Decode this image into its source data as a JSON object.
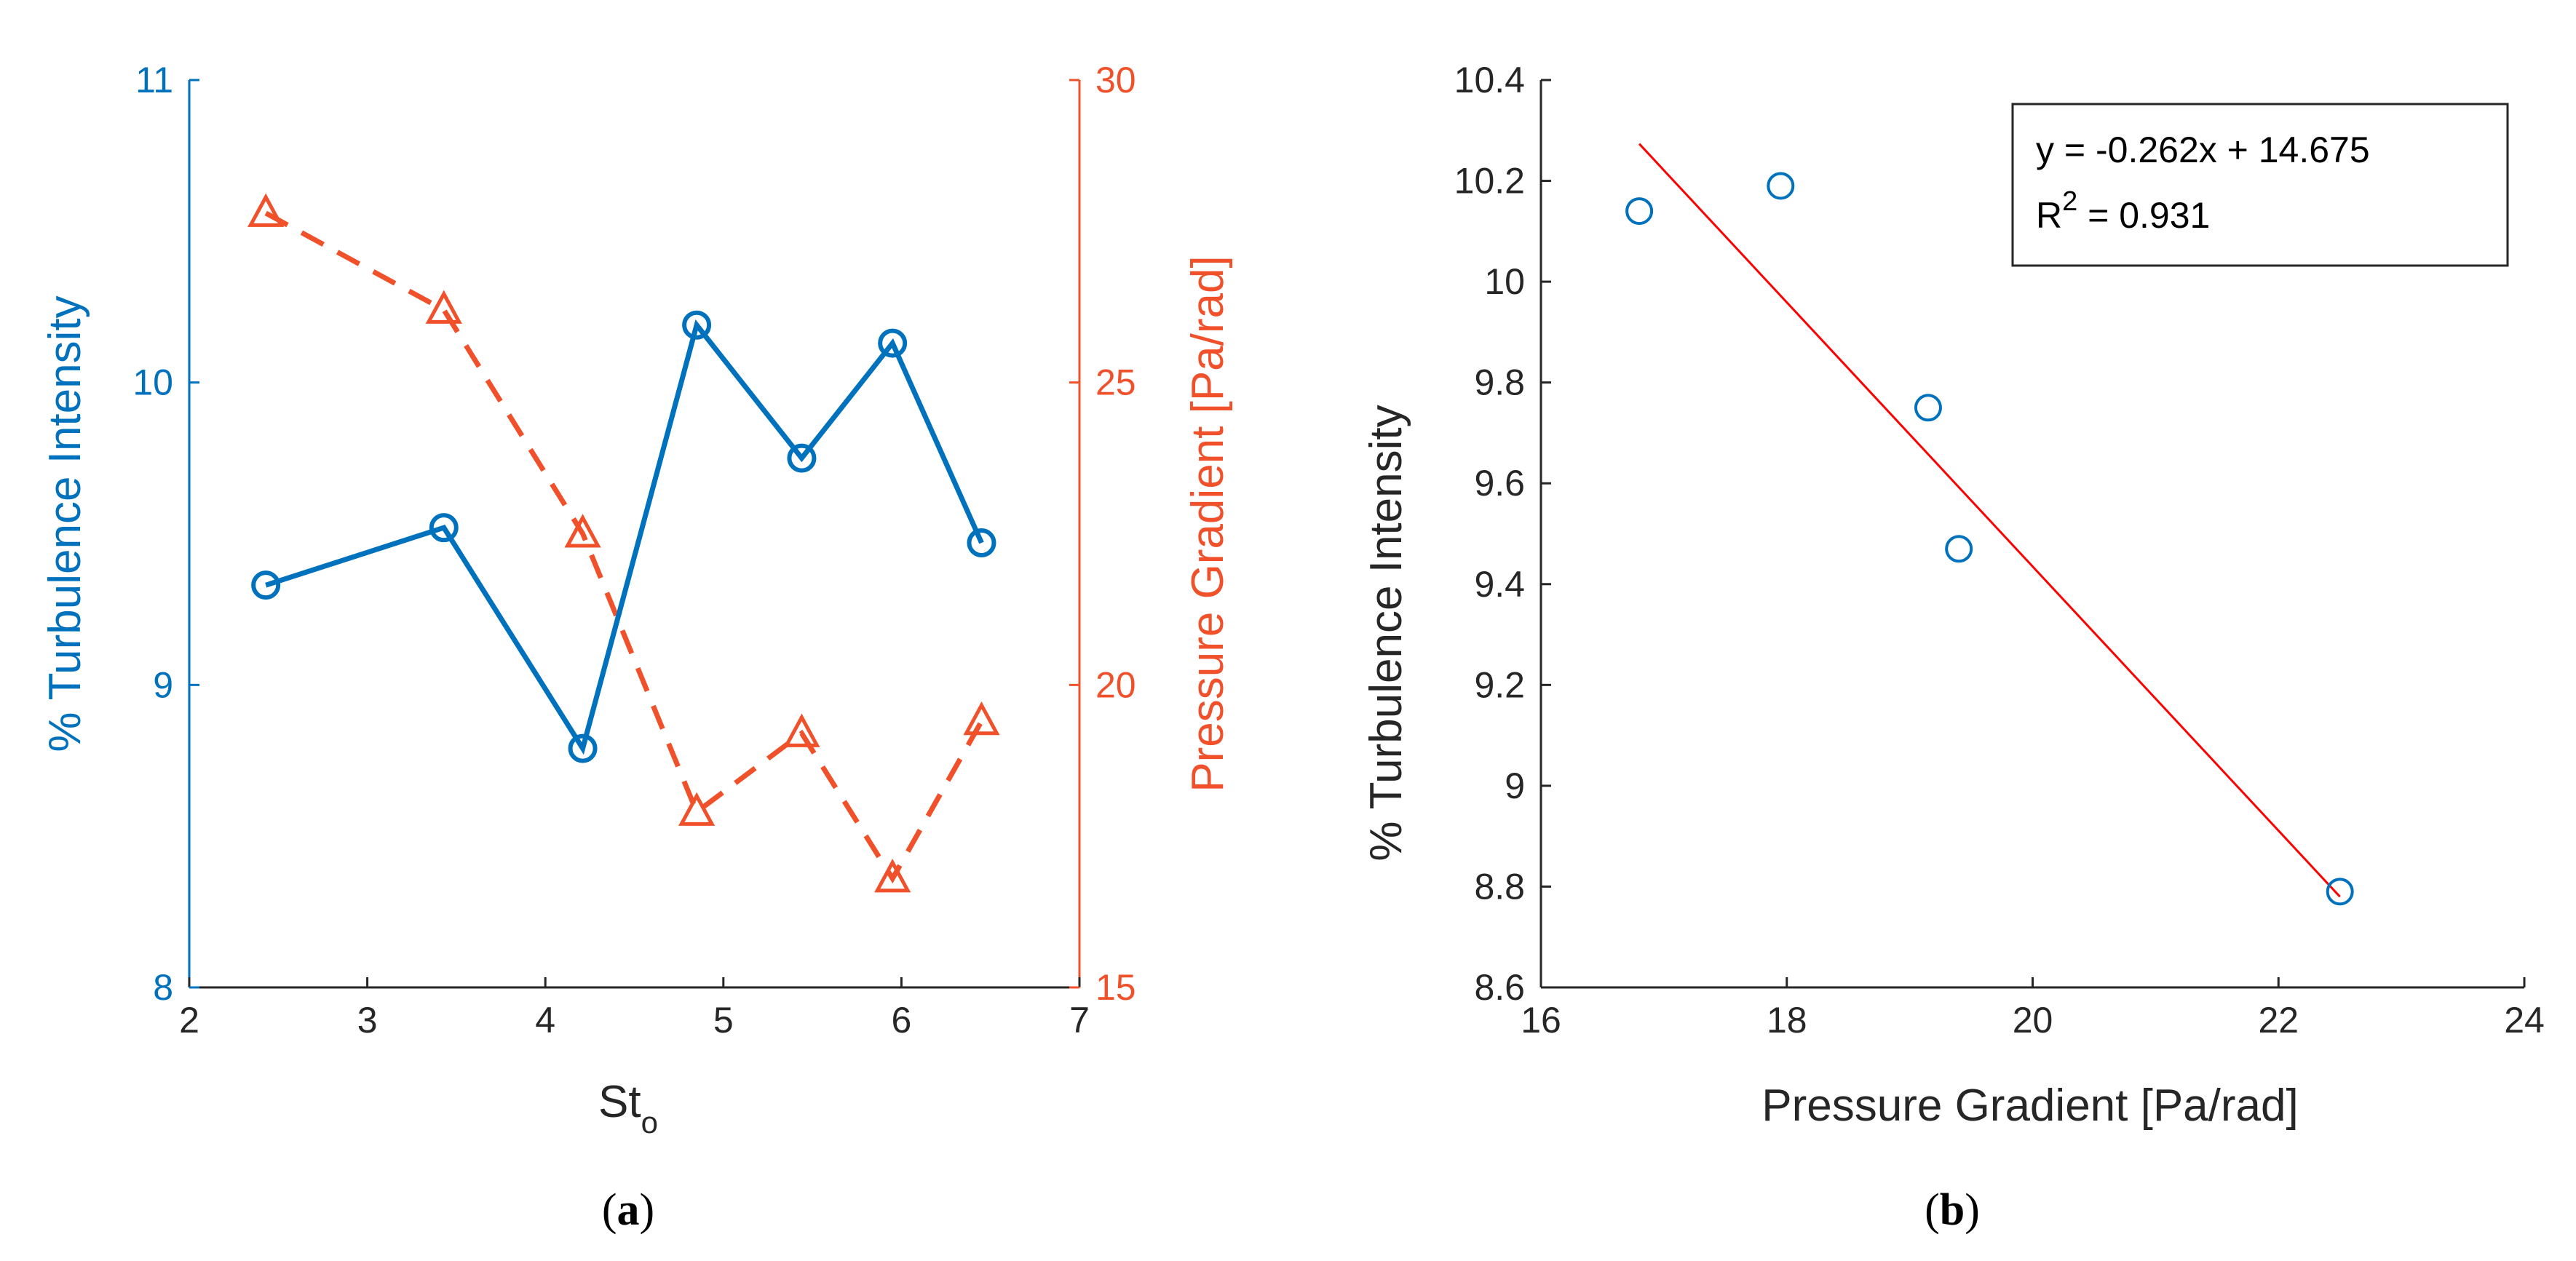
{
  "colors": {
    "blue": "#0072BD",
    "orange": "#F0502A",
    "red": "#FF0000",
    "black": "#262626"
  },
  "chart_data": [
    {
      "type": "line",
      "caption_letter": "a",
      "xlabel": "St",
      "xlabel_subscript": "o",
      "ylabel_left": "% Turbulence Intensity",
      "ylabel_right": "Pressure Gradient [Pa/rad]",
      "xlim": [
        2,
        7
      ],
      "ylim_left": [
        8,
        11
      ],
      "ylim_right": [
        15,
        30
      ],
      "x_ticks": [
        "2",
        "3",
        "4",
        "5",
        "6",
        "7"
      ],
      "y_ticks_left": [
        "8",
        "9",
        "10",
        "11"
      ],
      "y_ticks_right": [
        "15",
        "20",
        "25",
        "30"
      ],
      "series": [
        {
          "name": "% Turbulence Intensity",
          "axis": "left",
          "marker": "circle",
          "line_style": "solid",
          "x": [
            2.43,
            3.43,
            4.21,
            4.85,
            5.44,
            5.95,
            6.45
          ],
          "values": [
            9.33,
            9.52,
            8.79,
            10.19,
            9.75,
            10.13,
            9.47
          ]
        },
        {
          "name": "Pressure Gradient",
          "axis": "right",
          "marker": "triangle",
          "line_style": "dashed",
          "x": [
            2.43,
            3.43,
            4.21,
            4.85,
            5.44,
            5.95,
            6.45
          ],
          "values": [
            27.8,
            26.2,
            22.5,
            17.9,
            19.2,
            16.8,
            19.4
          ]
        }
      ]
    },
    {
      "type": "scatter",
      "caption_letter": "b",
      "xlabel": "Pressure Gradient [Pa/rad]",
      "ylabel": "% Turbulence Intensity",
      "xlim": [
        16,
        24
      ],
      "ylim": [
        8.6,
        10.4
      ],
      "x_ticks": [
        "16",
        "18",
        "20",
        "22",
        "24"
      ],
      "y_ticks": [
        "8.6",
        "8.8",
        "9",
        "9.2",
        "9.4",
        "9.6",
        "9.8",
        "10",
        "10.2",
        "10.4"
      ],
      "points": [
        {
          "x": 16.8,
          "y": 10.14
        },
        {
          "x": 17.95,
          "y": 10.19
        },
        {
          "x": 19.15,
          "y": 9.75
        },
        {
          "x": 19.4,
          "y": 9.47
        },
        {
          "x": 22.5,
          "y": 8.79
        }
      ],
      "fit": {
        "slope": -0.262,
        "intercept": 14.675,
        "x_range": [
          16.8,
          22.5
        ]
      },
      "annotation": {
        "equation": "y = -0.262x + 14.675",
        "r2_prefix": "R",
        "r2_sup": "2",
        "r2_value": " = 0.931"
      }
    }
  ]
}
